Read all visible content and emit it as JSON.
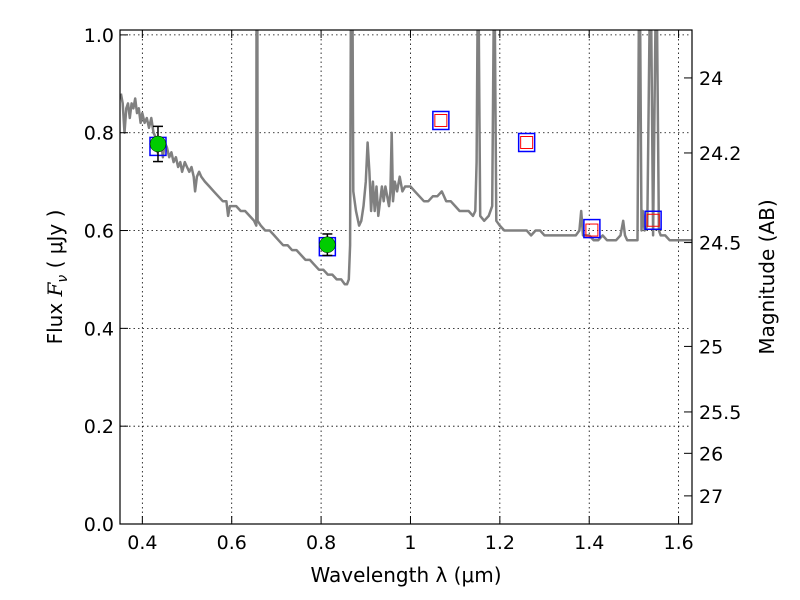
{
  "chart_data": {
    "type": "line",
    "xlabel": "Wavelength  λ (μm)",
    "ylabel": "Flux  F_ν  ( μJy )",
    "ylabel_parts": {
      "pre": "Flux  ",
      "sym": "F",
      "sub": "ν",
      "post": "  ( μJy )"
    },
    "ylabel_right": "Magnitude (AB)",
    "xlim": [
      0.35,
      1.63
    ],
    "ylim": [
      0.0,
      1.01
    ],
    "grid": true,
    "x_ticks": [
      {
        "value": 0.4,
        "label": "0.4"
      },
      {
        "value": 0.6,
        "label": "0.6"
      },
      {
        "value": 0.8,
        "label": "0.8"
      },
      {
        "value": 1.0,
        "label": "1"
      },
      {
        "value": 1.2,
        "label": "1.2"
      },
      {
        "value": 1.4,
        "label": "1.4"
      },
      {
        "value": 1.6,
        "label": "1.6"
      }
    ],
    "y_ticks": [
      {
        "value": 0.0,
        "label": "0.0"
      },
      {
        "value": 0.2,
        "label": "0.2"
      },
      {
        "value": 0.4,
        "label": "0.4"
      },
      {
        "value": 0.6,
        "label": "0.6"
      },
      {
        "value": 0.8,
        "label": "0.8"
      },
      {
        "value": 1.0,
        "label": "1.0"
      }
    ],
    "right_ticks": [
      {
        "flux": 0.912,
        "label": "24"
      },
      {
        "flux": 0.7586,
        "label": "24.2"
      },
      {
        "flux": 0.5754,
        "label": "24.5"
      },
      {
        "flux": 0.3631,
        "label": "25"
      },
      {
        "flux": 0.2291,
        "label": "25.5"
      },
      {
        "flux": 0.1445,
        "label": "26"
      },
      {
        "flux": 0.0575,
        "label": "27"
      }
    ],
    "series": [
      {
        "kind": "sed_model",
        "color": "#808080",
        "points": [
          [
            0.352,
            0.88
          ],
          [
            0.356,
            0.86
          ],
          [
            0.36,
            0.8
          ],
          [
            0.364,
            0.85
          ],
          [
            0.368,
            0.86
          ],
          [
            0.372,
            0.83
          ],
          [
            0.376,
            0.86
          ],
          [
            0.38,
            0.85
          ],
          [
            0.384,
            0.87
          ],
          [
            0.388,
            0.84
          ],
          [
            0.392,
            0.85
          ],
          [
            0.396,
            0.82
          ],
          [
            0.4,
            0.84
          ],
          [
            0.405,
            0.82
          ],
          [
            0.41,
            0.83
          ],
          [
            0.415,
            0.81
          ],
          [
            0.42,
            0.83
          ],
          [
            0.425,
            0.8
          ],
          [
            0.43,
            0.79
          ],
          [
            0.434,
            0.76
          ],
          [
            0.438,
            0.79
          ],
          [
            0.442,
            0.78
          ],
          [
            0.446,
            0.75
          ],
          [
            0.45,
            0.78
          ],
          [
            0.455,
            0.77
          ],
          [
            0.46,
            0.75
          ],
          [
            0.465,
            0.76
          ],
          [
            0.47,
            0.74
          ],
          [
            0.475,
            0.75
          ],
          [
            0.48,
            0.73
          ],
          [
            0.485,
            0.74
          ],
          [
            0.489,
            0.72
          ],
          [
            0.495,
            0.74
          ],
          [
            0.5,
            0.73
          ],
          [
            0.505,
            0.72
          ],
          [
            0.51,
            0.73
          ],
          [
            0.515,
            0.71
          ],
          [
            0.518,
            0.68
          ],
          [
            0.522,
            0.71
          ],
          [
            0.527,
            0.72
          ],
          [
            0.532,
            0.71
          ],
          [
            0.54,
            0.7
          ],
          [
            0.55,
            0.69
          ],
          [
            0.56,
            0.68
          ],
          [
            0.57,
            0.67
          ],
          [
            0.58,
            0.66
          ],
          [
            0.588,
            0.66
          ],
          [
            0.592,
            0.63
          ],
          [
            0.596,
            0.65
          ],
          [
            0.602,
            0.65
          ],
          [
            0.61,
            0.65
          ],
          [
            0.62,
            0.64
          ],
          [
            0.63,
            0.64
          ],
          [
            0.64,
            0.63
          ],
          [
            0.65,
            0.62
          ],
          [
            0.655,
            0.61
          ],
          [
            0.6555,
            1.01
          ],
          [
            0.6575,
            1.01
          ],
          [
            0.658,
            0.62
          ],
          [
            0.665,
            0.61
          ],
          [
            0.675,
            0.6
          ],
          [
            0.685,
            0.6
          ],
          [
            0.695,
            0.59
          ],
          [
            0.705,
            0.58
          ],
          [
            0.715,
            0.57
          ],
          [
            0.725,
            0.57
          ],
          [
            0.735,
            0.56
          ],
          [
            0.745,
            0.56
          ],
          [
            0.755,
            0.55
          ],
          [
            0.765,
            0.54
          ],
          [
            0.775,
            0.54
          ],
          [
            0.785,
            0.53
          ],
          [
            0.795,
            0.52
          ],
          [
            0.805,
            0.52
          ],
          [
            0.815,
            0.51
          ],
          [
            0.825,
            0.51
          ],
          [
            0.835,
            0.5
          ],
          [
            0.845,
            0.5
          ],
          [
            0.853,
            0.49
          ],
          [
            0.858,
            0.49
          ],
          [
            0.862,
            0.5
          ],
          [
            0.865,
            0.57
          ],
          [
            0.8665,
            1.01
          ],
          [
            0.8705,
            1.01
          ],
          [
            0.872,
            0.68
          ],
          [
            0.878,
            0.64
          ],
          [
            0.885,
            0.61
          ],
          [
            0.89,
            0.62
          ],
          [
            0.895,
            0.65
          ],
          [
            0.9,
            0.7
          ],
          [
            0.904,
            0.78
          ],
          [
            0.908,
            0.72
          ],
          [
            0.912,
            0.64
          ],
          [
            0.916,
            0.7
          ],
          [
            0.92,
            0.64
          ],
          [
            0.924,
            0.69
          ],
          [
            0.928,
            0.63
          ],
          [
            0.932,
            0.66
          ],
          [
            0.936,
            0.69
          ],
          [
            0.94,
            0.66
          ],
          [
            0.944,
            0.69
          ],
          [
            0.948,
            0.67
          ],
          [
            0.952,
            0.65
          ],
          [
            0.955,
            0.68
          ],
          [
            0.958,
            0.8
          ],
          [
            0.961,
            0.66
          ],
          [
            0.965,
            0.7
          ],
          [
            0.97,
            0.68
          ],
          [
            0.976,
            0.71
          ],
          [
            0.982,
            0.68
          ],
          [
            0.988,
            0.69
          ],
          [
            0.994,
            0.69
          ],
          [
            1.0,
            0.69
          ],
          [
            1.01,
            0.68
          ],
          [
            1.02,
            0.67
          ],
          [
            1.03,
            0.66
          ],
          [
            1.04,
            0.66
          ],
          [
            1.05,
            0.67
          ],
          [
            1.06,
            0.67
          ],
          [
            1.07,
            0.68
          ],
          [
            1.075,
            0.67
          ],
          [
            1.08,
            0.66
          ],
          [
            1.09,
            0.66
          ],
          [
            1.1,
            0.65
          ],
          [
            1.11,
            0.64
          ],
          [
            1.12,
            0.64
          ],
          [
            1.13,
            0.64
          ],
          [
            1.14,
            0.63
          ],
          [
            1.145,
            0.64
          ],
          [
            1.148,
            0.74
          ],
          [
            1.15,
            1.01
          ],
          [
            1.153,
            1.01
          ],
          [
            1.156,
            0.63
          ],
          [
            1.165,
            0.62
          ],
          [
            1.175,
            0.63
          ],
          [
            1.183,
            0.65
          ],
          [
            1.186,
            1.01
          ],
          [
            1.189,
            1.01
          ],
          [
            1.192,
            0.62
          ],
          [
            1.2,
            0.61
          ],
          [
            1.21,
            0.6
          ],
          [
            1.22,
            0.6
          ],
          [
            1.23,
            0.6
          ],
          [
            1.24,
            0.6
          ],
          [
            1.25,
            0.6
          ],
          [
            1.26,
            0.6
          ],
          [
            1.27,
            0.59
          ],
          [
            1.28,
            0.6
          ],
          [
            1.29,
            0.6
          ],
          [
            1.3,
            0.59
          ],
          [
            1.31,
            0.59
          ],
          [
            1.32,
            0.59
          ],
          [
            1.33,
            0.59
          ],
          [
            1.34,
            0.59
          ],
          [
            1.35,
            0.59
          ],
          [
            1.36,
            0.59
          ],
          [
            1.37,
            0.59
          ],
          [
            1.378,
            0.6
          ],
          [
            1.382,
            0.64
          ],
          [
            1.386,
            0.59
          ],
          [
            1.39,
            0.59
          ],
          [
            1.4,
            0.59
          ],
          [
            1.41,
            0.58
          ],
          [
            1.42,
            0.58
          ],
          [
            1.43,
            0.59
          ],
          [
            1.44,
            0.58
          ],
          [
            1.45,
            0.58
          ],
          [
            1.46,
            0.58
          ],
          [
            1.47,
            0.59
          ],
          [
            1.476,
            0.62
          ],
          [
            1.48,
            0.59
          ],
          [
            1.485,
            0.58
          ],
          [
            1.49,
            0.58
          ],
          [
            1.5,
            0.58
          ],
          [
            1.508,
            0.58
          ],
          [
            1.511,
            1.01
          ],
          [
            1.514,
            1.01
          ],
          [
            1.517,
            0.6
          ],
          [
            1.52,
            0.64
          ],
          [
            1.524,
            0.6
          ],
          [
            1.53,
            0.61
          ],
          [
            1.535,
            1.01
          ],
          [
            1.539,
            1.01
          ],
          [
            1.543,
            0.59
          ],
          [
            1.548,
            1.01
          ],
          [
            1.552,
            1.01
          ],
          [
            1.556,
            0.6
          ],
          [
            1.56,
            0.59
          ],
          [
            1.57,
            0.59
          ],
          [
            1.58,
            0.58
          ],
          [
            1.59,
            0.58
          ],
          [
            1.6,
            0.58
          ],
          [
            1.61,
            0.58
          ],
          [
            1.62,
            0.58
          ],
          [
            1.63,
            0.58
          ]
        ]
      },
      {
        "kind": "measured",
        "color": "#00cc00",
        "points": [
          {
            "x": 0.435,
            "y": 0.777,
            "yerr": 0.036
          },
          {
            "x": 0.814,
            "y": 0.571,
            "yerr": 0.022
          }
        ]
      },
      {
        "kind": "model_photometry",
        "edge_color": "#0000ff",
        "points": [
          {
            "x": 0.435,
            "y": 0.772
          },
          {
            "x": 0.814,
            "y": 0.567
          },
          {
            "x": 1.068,
            "y": 0.825
          },
          {
            "x": 1.26,
            "y": 0.78
          },
          {
            "x": 1.406,
            "y": 0.604
          },
          {
            "x": 1.543,
            "y": 0.621
          }
        ]
      },
      {
        "kind": "upper_limits",
        "edge_color": "#ff0000",
        "points": [
          {
            "x": 1.068,
            "y": 0.825
          },
          {
            "x": 1.26,
            "y": 0.78
          },
          {
            "x": 1.406,
            "y": 0.601
          },
          {
            "x": 1.543,
            "y": 0.621
          }
        ]
      }
    ]
  }
}
